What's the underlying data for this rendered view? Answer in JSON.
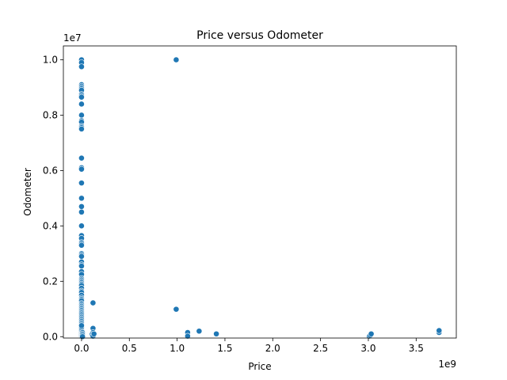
{
  "chart_data": {
    "type": "scatter",
    "title": "Price versus Odometer",
    "xlabel": "Price",
    "ylabel": "Odometer",
    "x_offset_label": "1e9",
    "y_offset_label": "1e7",
    "x_scale": 1000000000,
    "y_scale": 10000000,
    "xlim": [
      -0.19,
      3.92
    ],
    "ylim": [
      -0.05,
      10.5
    ],
    "x_ticks": [
      0.0,
      0.5,
      1.0,
      1.5,
      2.0,
      2.5,
      3.0,
      3.5
    ],
    "x_tick_labels": [
      "0.0",
      "0.5",
      "1.0",
      "1.5",
      "2.0",
      "2.5",
      "3.0",
      "3.5"
    ],
    "y_ticks": [
      0.0,
      0.2,
      0.4,
      0.6,
      0.8,
      1.0
    ],
    "y_tick_labels": [
      "0.0",
      "0.2",
      "0.4",
      "0.6",
      "0.8",
      "1.0"
    ],
    "y_tick_values": [
      0.0,
      2.0,
      4.0,
      6.0,
      8.0,
      10.0
    ],
    "grid": false,
    "marker_color": "#1f77b4",
    "series": [
      {
        "x": [
          0.0,
          0.0,
          0.0,
          0.0,
          0.0,
          0.0,
          0.0,
          0.0,
          0.0,
          0.0,
          0.0,
          0.0,
          0.0,
          0.0,
          0.0,
          0.0,
          0.0,
          0.0,
          0.0,
          0.0,
          0.0,
          0.0,
          0.0,
          0.0,
          0.0,
          0.0,
          0.0,
          0.0,
          0.0,
          0.0,
          0.0,
          0.0,
          0.0,
          0.0,
          0.0,
          0.0,
          0.0,
          0.0,
          0.0,
          0.0,
          0.0,
          0.0,
          0.0,
          0.0,
          0.0,
          0.0,
          0.0,
          0.0,
          0.0,
          0.0,
          0.0,
          0.0,
          0.0,
          0.0,
          0.0,
          0.0,
          0.0,
          0.0,
          0.0,
          0.0,
          0.0,
          0.0,
          0.0,
          0.0,
          0.0,
          0.0,
          0.0,
          0.0,
          0.0,
          0.0,
          0.0,
          0.0,
          0.0,
          0.0,
          0.0,
          0.0,
          0.0,
          0.0,
          0.0,
          0.0,
          0.0,
          0.0,
          0.0,
          0.0,
          0.0,
          0.0,
          0.0,
          0.0,
          0.0,
          0.0,
          0.0,
          0.0,
          0.0,
          0.0,
          0.0,
          0.0,
          0.0,
          0.01,
          0.01,
          0.01,
          0.01,
          0.12,
          0.12,
          0.12,
          0.11,
          0.12,
          0.12,
          0.13,
          0.99,
          0.99,
          1.11,
          1.11,
          1.23,
          1.41,
          3.01,
          3.02,
          3.03,
          3.74,
          3.74
        ],
        "y": [
          10.0,
          9.9,
          9.75,
          9.1,
          9.05,
          9.0,
          8.95,
          8.9,
          8.75,
          8.7,
          8.65,
          8.4,
          8.0,
          7.8,
          7.75,
          7.6,
          7.55,
          7.5,
          6.45,
          6.1,
          6.05,
          5.55,
          5.0,
          4.7,
          4.5,
          4.0,
          3.65,
          3.55,
          3.4,
          3.35,
          3.3,
          3.0,
          2.95,
          2.9,
          2.7,
          2.6,
          2.55,
          2.35,
          2.25,
          2.1,
          2.05,
          2.0,
          1.95,
          1.9,
          1.85,
          1.75,
          1.65,
          1.6,
          1.5,
          1.4,
          1.35,
          1.3,
          1.2,
          1.15,
          1.1,
          1.05,
          1.0,
          0.95,
          0.9,
          0.85,
          0.8,
          0.75,
          0.7,
          0.65,
          0.6,
          0.55,
          0.5,
          0.45,
          0.4,
          0.35,
          0.3,
          0.27,
          0.24,
          0.21,
          0.18,
          0.15,
          0.13,
          0.11,
          0.09,
          0.08,
          0.07,
          0.06,
          0.05,
          0.04,
          0.03,
          0.02,
          0.01,
          0.0,
          0.02,
          0.05,
          0.1,
          0.15,
          0.2,
          0.25,
          0.3,
          0.35,
          0.4,
          0.15,
          0.1,
          0.05,
          0.0,
          1.22,
          0.3,
          0.15,
          0.08,
          0.05,
          0.02,
          0.1,
          10.0,
          0.99,
          0.15,
          0.02,
          0.2,
          0.1,
          0.02,
          0.05,
          0.1,
          0.15,
          0.22
        ]
      }
    ]
  }
}
